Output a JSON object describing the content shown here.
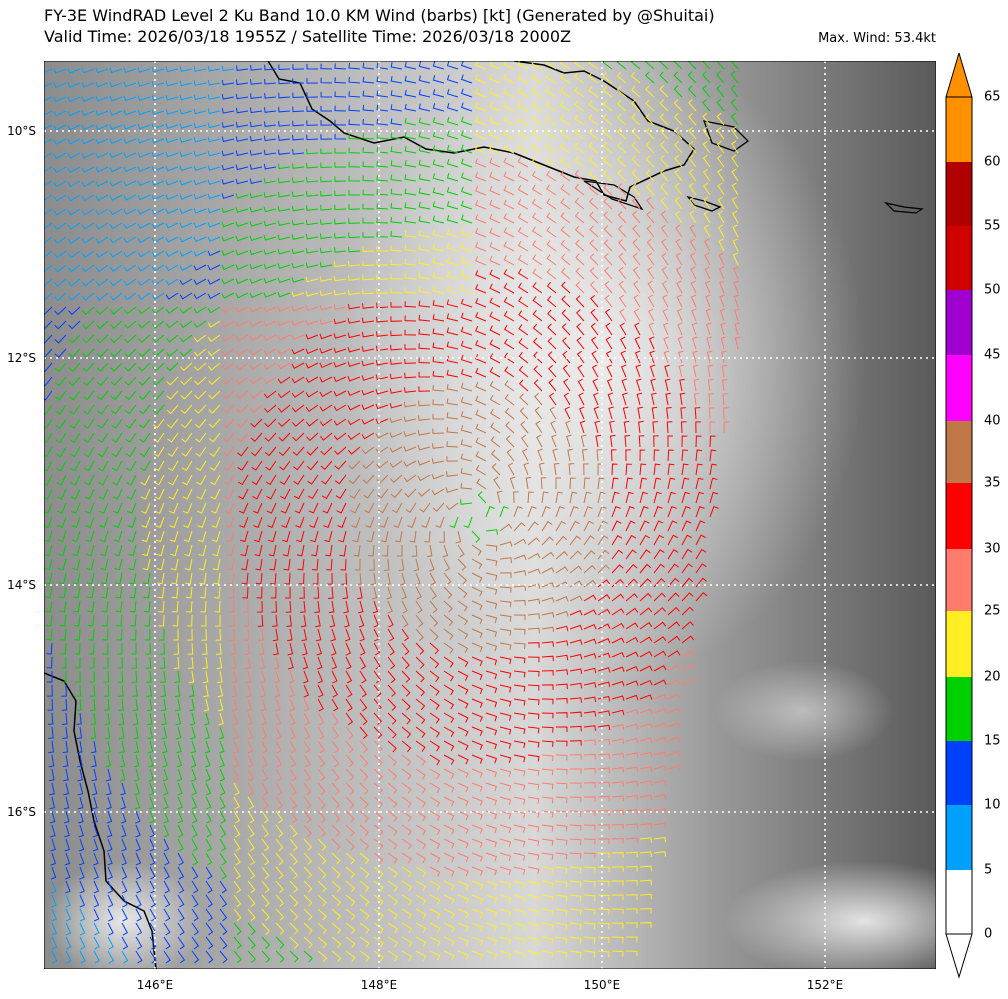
{
  "title_line1": "FY-3E WindRAD Level 2 Ku Band 10.0 KM Wind (barbs) [kt] (Generated by @Shuitai)",
  "title_line2": "Valid Time: 2026/03/18 1955Z / Satellite Time: 2026/03/18 2000Z",
  "max_wind": "Max. Wind: 53.4kt",
  "lat_labels": [
    "10°S",
    "12°S",
    "14°S",
    "16°S"
  ],
  "lon_labels": [
    "146°E",
    "148°E",
    "150°E",
    "152°E"
  ],
  "colorbar": {
    "ticks": [
      "65",
      "60",
      "55",
      "50",
      "45",
      "40",
      "35",
      "30",
      "25",
      "20",
      "15",
      "10",
      "5",
      "0"
    ],
    "colors": {
      "0-5": "#ffffff",
      "5-10": "#00a0ff",
      "10-15": "#0040ff",
      "15-20": "#00d000",
      "20-25": "#ffee22",
      "25-30": "#ff7b6b",
      "30-35": "#ff0000",
      "35-40": "#c07848",
      "40-45": "#ff00ff",
      "45-50": "#a000d0",
      "50-55": "#d00000",
      "55-60": "#b00000",
      "60-65": "#ff9000"
    }
  },
  "storm_center": {
    "lon": 148.9,
    "lat": -13.4
  }
}
